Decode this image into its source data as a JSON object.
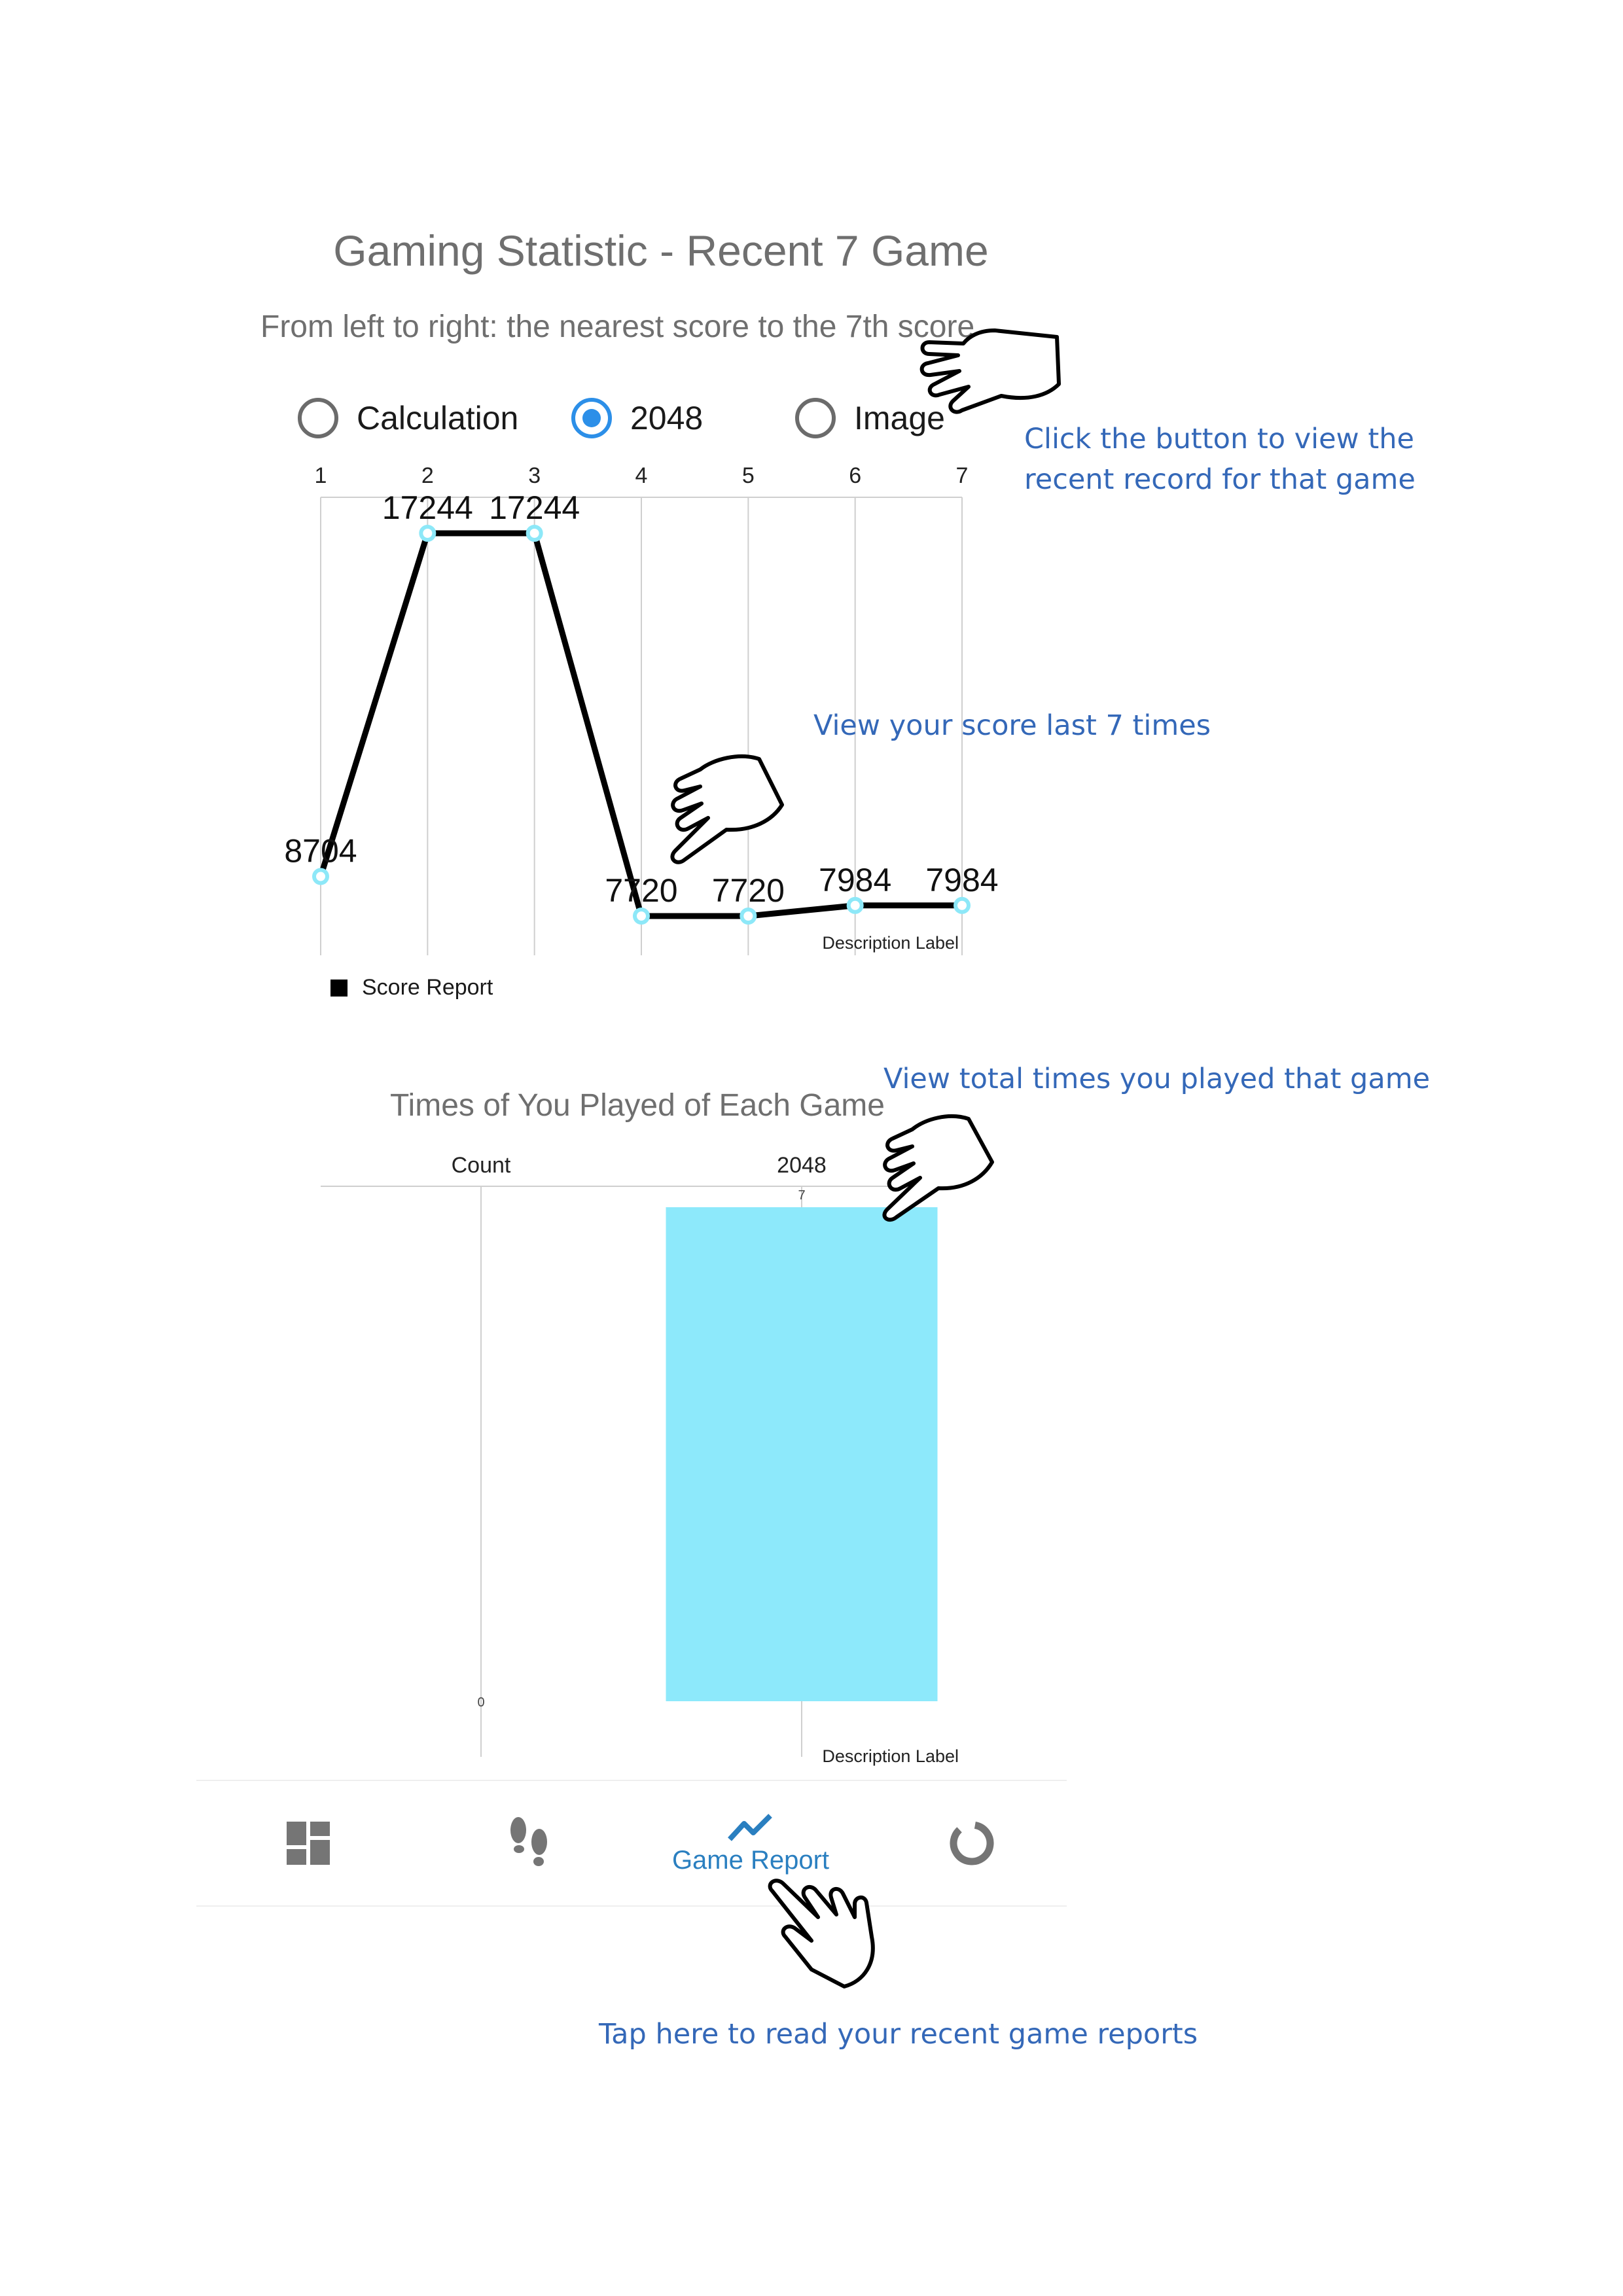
{
  "header": {
    "title": "Gaming Statistic - Recent 7 Game",
    "subtitle": "From left to right: the nearest score to the 7th score"
  },
  "game_selector": {
    "options": [
      {
        "label": "Calculation",
        "checked": false
      },
      {
        "label": "2048",
        "checked": true
      },
      {
        "label": "Image",
        "checked": false
      }
    ]
  },
  "chart_data": [
    {
      "type": "line",
      "x": [
        1,
        2,
        3,
        4,
        5,
        6,
        7
      ],
      "values": [
        8704,
        17244,
        17244,
        7720,
        7720,
        7984,
        7984
      ],
      "value_labels": [
        "8704",
        "17244",
        "17244",
        "7720",
        "7720",
        "7984",
        "7984"
      ],
      "x_tick_labels": [
        "1",
        "2",
        "3",
        "4",
        "5",
        "6",
        "7"
      ],
      "description_label": "Description Label",
      "legend": "Score Report",
      "series_color": "#000000",
      "point_color": "#8de8f8",
      "grid": true,
      "legend_position": "bottom-left"
    },
    {
      "type": "bar",
      "title": "Times of You Played of Each Game",
      "column_labels": [
        "Count",
        "2048"
      ],
      "categories": [
        "2048"
      ],
      "values": [
        7
      ],
      "value_labels": [
        "7"
      ],
      "axis_zero_label": "0",
      "description_label": "Description Label",
      "bar_color": "#8de9fb"
    }
  ],
  "bottom_nav": {
    "items": [
      {
        "icon": "dashboard-icon",
        "label": ""
      },
      {
        "icon": "footsteps-icon",
        "label": ""
      },
      {
        "icon": "trend-line-icon",
        "label": "Game Report",
        "active": true
      },
      {
        "icon": "donut-chart-icon",
        "label": ""
      }
    ],
    "active_color": "#2a7fc0",
    "inactive_color": "#757575"
  },
  "annotations": {
    "buttons_note_line1": "Click the button to view the",
    "buttons_note_line2": "recent record for that game",
    "score_note": "View your score last 7 times",
    "count_note": "View total times you played that game",
    "report_note": "Tap here to read your recent game reports"
  },
  "colors": {
    "annotation_text": "#3468b8",
    "radio_checked": "#2c8fe8",
    "radio_unchecked": "#6b6b6b"
  }
}
